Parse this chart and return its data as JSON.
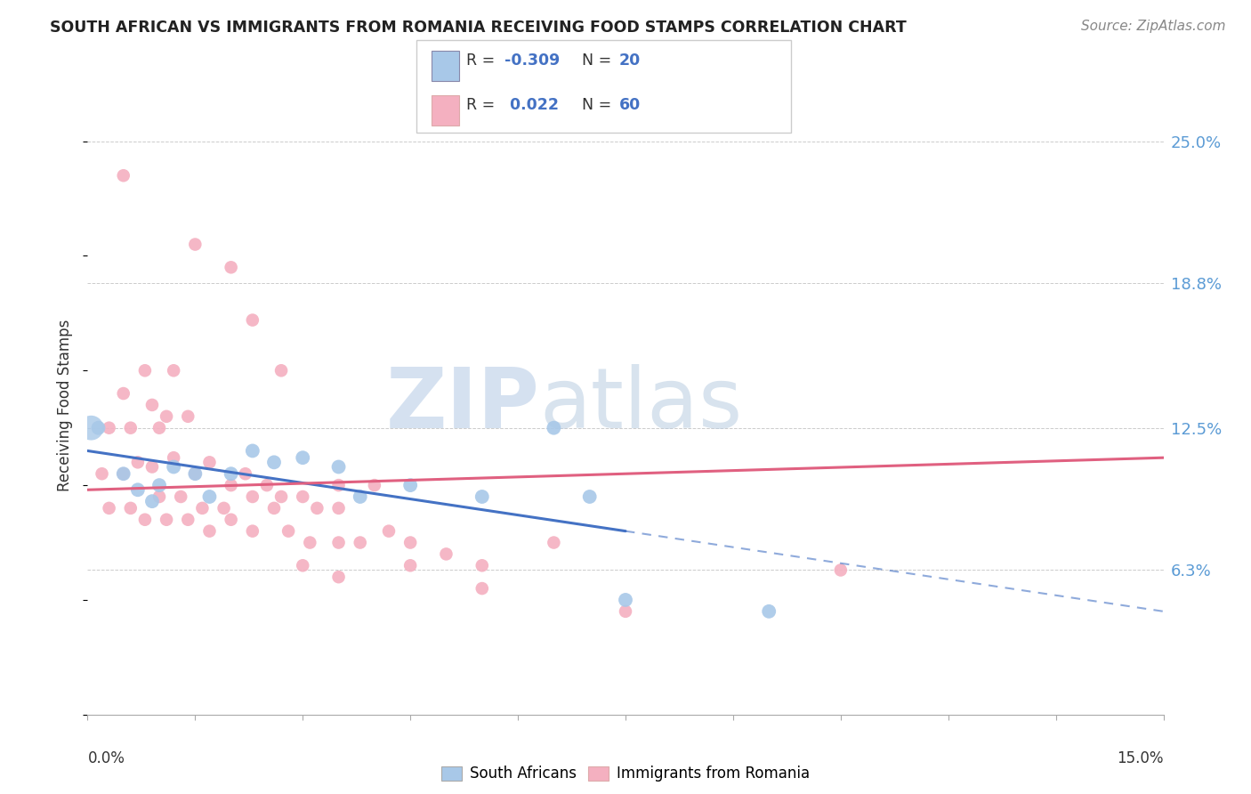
{
  "title": "SOUTH AFRICAN VS IMMIGRANTS FROM ROMANIA RECEIVING FOOD STAMPS CORRELATION CHART",
  "source": "Source: ZipAtlas.com",
  "ylabel": "Receiving Food Stamps",
  "xmin": 0.0,
  "xmax": 15.0,
  "ymin": 0.0,
  "ymax": 27.0,
  "ytick_vals": [
    6.3,
    12.5,
    18.8,
    25.0
  ],
  "ytick_labels": [
    "6.3%",
    "12.5%",
    "18.8%",
    "25.0%"
  ],
  "legend_bottom_label1": "South Africans",
  "legend_bottom_label2": "Immigrants from Romania",
  "south_african_color": "#a8c8e8",
  "romania_color": "#f4b0c0",
  "south_african_line_color": "#4472c4",
  "romania_line_color": "#e06080",
  "watermark_zip": "ZIP",
  "watermark_atlas": "atlas",
  "south_african_points": [
    [
      0.15,
      12.5
    ],
    [
      0.5,
      10.5
    ],
    [
      0.7,
      9.8
    ],
    [
      0.9,
      9.3
    ],
    [
      1.0,
      10.0
    ],
    [
      1.2,
      10.8
    ],
    [
      1.5,
      10.5
    ],
    [
      1.7,
      9.5
    ],
    [
      2.0,
      10.5
    ],
    [
      2.3,
      11.5
    ],
    [
      2.6,
      11.0
    ],
    [
      3.0,
      11.2
    ],
    [
      3.5,
      10.8
    ],
    [
      3.8,
      9.5
    ],
    [
      4.5,
      10.0
    ],
    [
      5.5,
      9.5
    ],
    [
      6.5,
      12.5
    ],
    [
      7.0,
      9.5
    ],
    [
      7.5,
      5.0
    ],
    [
      9.5,
      4.5
    ]
  ],
  "romania_points": [
    [
      0.5,
      23.5
    ],
    [
      1.5,
      20.5
    ],
    [
      2.0,
      19.5
    ],
    [
      2.3,
      17.2
    ],
    [
      2.7,
      15.0
    ],
    [
      0.8,
      15.0
    ],
    [
      1.2,
      15.0
    ],
    [
      0.5,
      14.0
    ],
    [
      0.9,
      13.5
    ],
    [
      1.1,
      13.0
    ],
    [
      1.4,
      13.0
    ],
    [
      0.3,
      12.5
    ],
    [
      0.6,
      12.5
    ],
    [
      1.0,
      12.5
    ],
    [
      3.5,
      10.0
    ],
    [
      4.0,
      10.0
    ],
    [
      0.2,
      10.5
    ],
    [
      0.5,
      10.5
    ],
    [
      0.7,
      11.0
    ],
    [
      0.9,
      10.8
    ],
    [
      1.2,
      11.2
    ],
    [
      1.5,
      10.5
    ],
    [
      1.7,
      11.0
    ],
    [
      2.0,
      10.0
    ],
    [
      2.2,
      10.5
    ],
    [
      2.5,
      10.0
    ],
    [
      2.7,
      9.5
    ],
    [
      3.0,
      9.5
    ],
    [
      3.2,
      9.0
    ],
    [
      3.5,
      9.0
    ],
    [
      1.0,
      9.5
    ],
    [
      1.3,
      9.5
    ],
    [
      1.6,
      9.0
    ],
    [
      1.9,
      9.0
    ],
    [
      2.3,
      9.5
    ],
    [
      2.6,
      9.0
    ],
    [
      0.3,
      9.0
    ],
    [
      0.6,
      9.0
    ],
    [
      0.8,
      8.5
    ],
    [
      1.1,
      8.5
    ],
    [
      1.4,
      8.5
    ],
    [
      1.7,
      8.0
    ],
    [
      2.0,
      8.5
    ],
    [
      2.3,
      8.0
    ],
    [
      2.8,
      8.0
    ],
    [
      3.1,
      7.5
    ],
    [
      3.5,
      7.5
    ],
    [
      3.8,
      7.5
    ],
    [
      4.2,
      8.0
    ],
    [
      4.5,
      7.5
    ],
    [
      5.0,
      7.0
    ],
    [
      5.5,
      6.5
    ],
    [
      3.0,
      6.5
    ],
    [
      3.5,
      6.0
    ],
    [
      4.5,
      6.5
    ],
    [
      5.5,
      5.5
    ],
    [
      6.5,
      7.5
    ],
    [
      10.5,
      6.3
    ],
    [
      7.5,
      4.5
    ]
  ],
  "sa_trend_x0": 0.0,
  "sa_trend_y0": 11.5,
  "sa_trend_x1": 7.5,
  "sa_trend_y1": 8.0,
  "sa_dash_x0": 7.5,
  "sa_dash_y0": 8.0,
  "sa_dash_x1": 15.0,
  "sa_dash_y1": 4.5,
  "ro_trend_x0": 0.0,
  "ro_trend_y0": 9.8,
  "ro_trend_x1": 15.0,
  "ro_trend_y1": 11.2
}
